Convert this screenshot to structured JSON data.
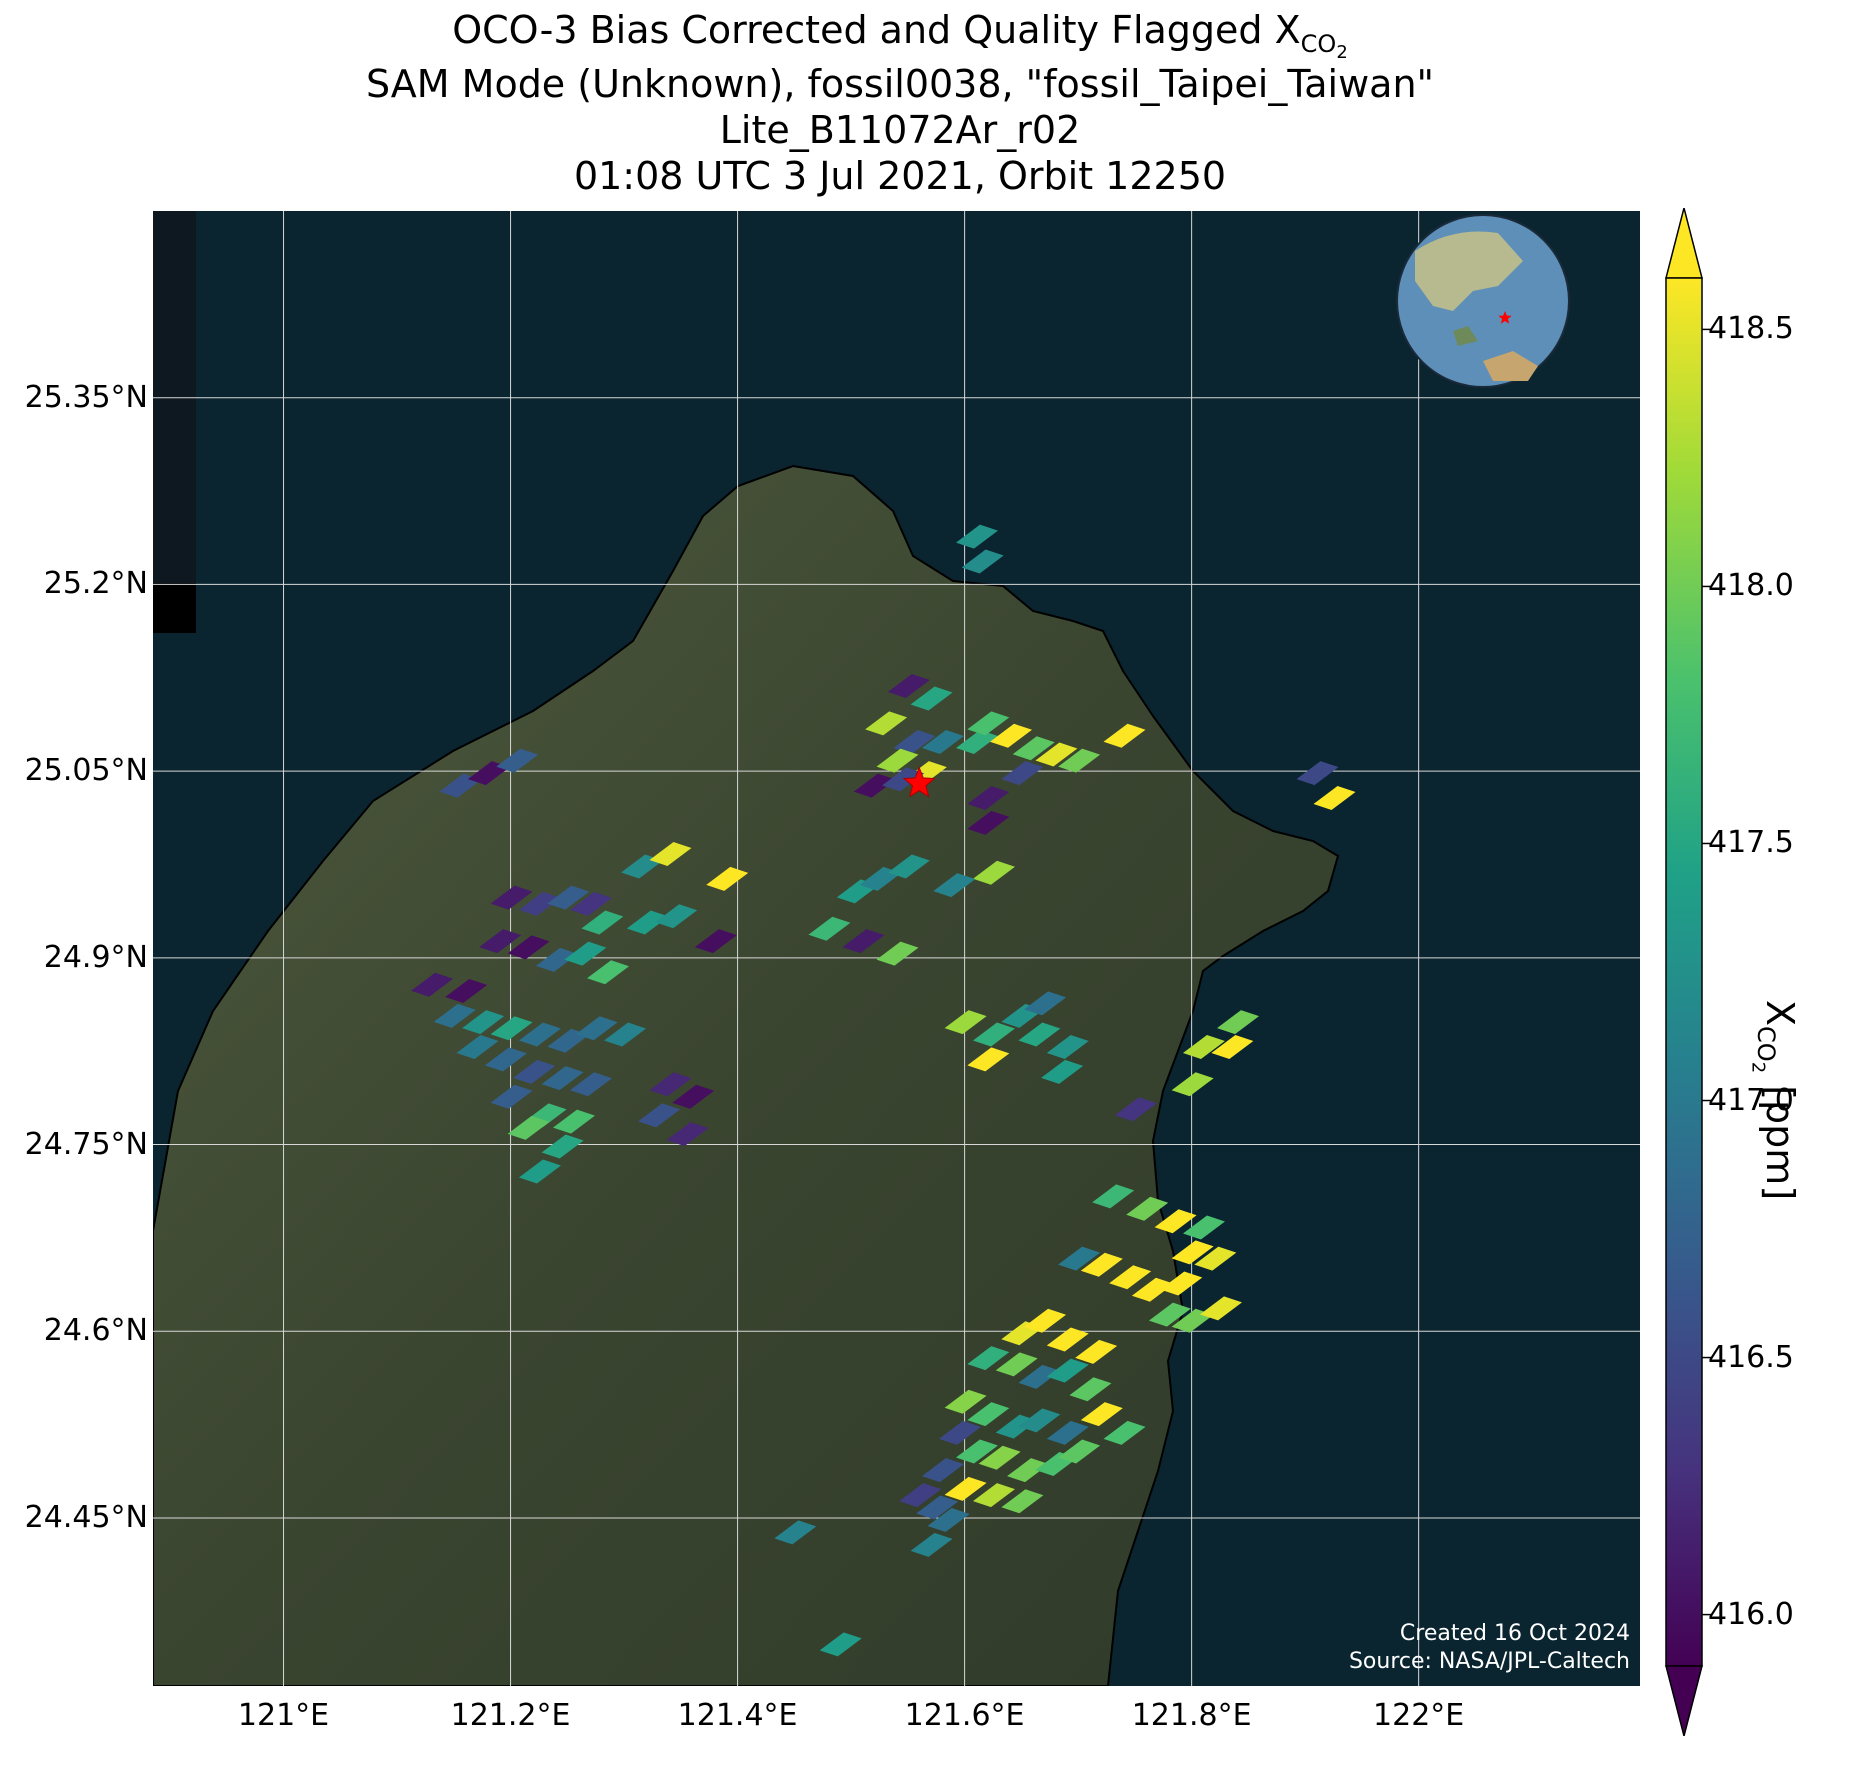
{
  "title": {
    "line1_prefix": "OCO-3 Bias Corrected and Quality Flagged X",
    "line1_sub": "CO",
    "line1_subsub": "2",
    "line2": "SAM Mode (Unknown), fossil0038, \"fossil_Taipei_Taiwan\"",
    "line3": "Lite_B11072Ar_r02",
    "line4": "01:08 UTC 3 Jul 2021, Orbit 12250"
  },
  "map": {
    "lon_range": [
      120.885,
      122.195
    ],
    "lat_range": [
      24.315,
      25.5
    ],
    "lat_ticks": [
      "25.35°N",
      "25.2°N",
      "25.05°N",
      "24.9°N",
      "24.75°N",
      "24.6°N",
      "24.45°N"
    ],
    "lat_tick_values": [
      25.35,
      25.2,
      25.05,
      24.9,
      24.75,
      24.6,
      24.45
    ],
    "lon_ticks": [
      "121°E",
      "121.2°E",
      "121.4°E",
      "121.6°E",
      "121.8°E",
      "122°E"
    ],
    "lon_tick_values": [
      121.0,
      121.2,
      121.4,
      121.6,
      121.8,
      122.0
    ],
    "target_marker": {
      "lon": 121.56,
      "lat": 25.04,
      "icon": "red-star-icon"
    },
    "ocean_color": "#0a2530",
    "land_color": "#3d4a33",
    "credits": {
      "line1": "Created 16 Oct 2024",
      "line2": "Source: NASA/JPL-Caltech"
    }
  },
  "colorbar": {
    "min": 415.9,
    "max": 418.6,
    "ticks": [
      "416.0",
      "416.5",
      "417.0",
      "417.5",
      "418.0",
      "418.5"
    ],
    "tick_values": [
      416.0,
      416.5,
      417.0,
      417.5,
      418.0,
      418.5
    ],
    "label_prefix": "X",
    "label_sub": "CO",
    "label_subsub": "2",
    "label_suffix": " [ppm]",
    "colormap": "viridis",
    "extend": "both"
  },
  "chart_data": {
    "type": "heatmap",
    "description_units": "lon (°E), lat (°N), XCO2 (ppm)",
    "points": [
      [
        121.61,
        25.24,
        417.3
      ],
      [
        121.615,
        25.22,
        417.2
      ],
      [
        121.55,
        25.12,
        416.1
      ],
      [
        121.57,
        25.11,
        417.5
      ],
      [
        121.53,
        25.09,
        418.3
      ],
      [
        121.555,
        25.075,
        416.6
      ],
      [
        121.58,
        25.075,
        417.0
      ],
      [
        121.54,
        25.06,
        418.2
      ],
      [
        121.565,
        25.05,
        418.5
      ],
      [
        121.61,
        25.075,
        417.6
      ],
      [
        121.62,
        25.09,
        417.8
      ],
      [
        121.64,
        25.08,
        418.6
      ],
      [
        121.66,
        25.07,
        417.9
      ],
      [
        121.68,
        25.065,
        418.5
      ],
      [
        121.7,
        25.06,
        418.0
      ],
      [
        121.74,
        25.08,
        418.6
      ],
      [
        121.65,
        25.05,
        416.5
      ],
      [
        121.62,
        25.03,
        416.1
      ],
      [
        121.62,
        25.01,
        416.0
      ],
      [
        121.625,
        24.97,
        418.2
      ],
      [
        121.52,
        25.04,
        416.0
      ],
      [
        121.545,
        25.045,
        416.5
      ],
      [
        121.91,
        25.05,
        416.5
      ],
      [
        121.925,
        25.03,
        418.6
      ],
      [
        121.155,
        25.04,
        416.6
      ],
      [
        121.18,
        25.05,
        416.0
      ],
      [
        121.205,
        25.06,
        416.7
      ],
      [
        121.315,
        24.975,
        417.2
      ],
      [
        121.34,
        24.985,
        418.5
      ],
      [
        121.39,
        24.965,
        418.6
      ],
      [
        121.32,
        24.93,
        417.4
      ],
      [
        121.345,
        24.935,
        417.3
      ],
      [
        121.38,
        24.915,
        416.0
      ],
      [
        121.2,
        24.95,
        416.1
      ],
      [
        121.225,
        24.945,
        416.4
      ],
      [
        121.25,
        24.95,
        416.7
      ],
      [
        121.27,
        24.945,
        416.3
      ],
      [
        121.28,
        24.93,
        417.6
      ],
      [
        121.19,
        24.915,
        416.1
      ],
      [
        121.215,
        24.91,
        416.0
      ],
      [
        121.24,
        24.9,
        416.8
      ],
      [
        121.265,
        24.905,
        417.4
      ],
      [
        121.285,
        24.89,
        417.8
      ],
      [
        121.13,
        24.88,
        416.1
      ],
      [
        121.16,
        24.875,
        416.0
      ],
      [
        121.15,
        24.855,
        416.9
      ],
      [
        121.175,
        24.85,
        417.3
      ],
      [
        121.2,
        24.845,
        417.5
      ],
      [
        121.225,
        24.84,
        416.9
      ],
      [
        121.25,
        24.835,
        416.8
      ],
      [
        121.275,
        24.845,
        416.9
      ],
      [
        121.3,
        24.84,
        417.1
      ],
      [
        121.17,
        24.83,
        417.0
      ],
      [
        121.195,
        24.82,
        416.8
      ],
      [
        121.22,
        24.81,
        416.6
      ],
      [
        121.245,
        24.805,
        416.8
      ],
      [
        121.27,
        24.8,
        416.7
      ],
      [
        121.2,
        24.79,
        416.7
      ],
      [
        121.23,
        24.775,
        417.7
      ],
      [
        121.255,
        24.77,
        417.8
      ],
      [
        121.215,
        24.765,
        417.9
      ],
      [
        121.245,
        24.75,
        417.5
      ],
      [
        121.225,
        24.73,
        417.4
      ],
      [
        121.34,
        24.8,
        416.2
      ],
      [
        121.36,
        24.79,
        416.0
      ],
      [
        121.33,
        24.775,
        416.6
      ],
      [
        121.355,
        24.76,
        416.2
      ],
      [
        121.505,
        24.955,
        417.4
      ],
      [
        121.525,
        24.965,
        417.1
      ],
      [
        121.55,
        24.975,
        417.3
      ],
      [
        121.59,
        24.96,
        417.1
      ],
      [
        121.48,
        24.925,
        417.7
      ],
      [
        121.51,
        24.915,
        416.1
      ],
      [
        121.54,
        24.905,
        418.0
      ],
      [
        121.6,
        24.85,
        418.2
      ],
      [
        121.625,
        24.84,
        417.6
      ],
      [
        121.62,
        24.82,
        418.6
      ],
      [
        121.65,
        24.855,
        417.3
      ],
      [
        121.67,
        24.865,
        416.9
      ],
      [
        121.665,
        24.84,
        417.5
      ],
      [
        121.69,
        24.83,
        417.3
      ],
      [
        121.685,
        24.81,
        417.4
      ],
      [
        121.75,
        24.78,
        416.3
      ],
      [
        121.81,
        24.83,
        418.3
      ],
      [
        121.8,
        24.8,
        418.2
      ],
      [
        121.84,
        24.85,
        418.0
      ],
      [
        121.835,
        24.83,
        418.6
      ],
      [
        121.73,
        24.71,
        417.7
      ],
      [
        121.76,
        24.7,
        418.0
      ],
      [
        121.785,
        24.69,
        418.6
      ],
      [
        121.81,
        24.685,
        417.8
      ],
      [
        121.8,
        24.665,
        418.6
      ],
      [
        121.82,
        24.66,
        418.5
      ],
      [
        121.7,
        24.66,
        417.0
      ],
      [
        121.72,
        24.655,
        418.6
      ],
      [
        121.745,
        24.645,
        418.6
      ],
      [
        121.765,
        24.635,
        418.6
      ],
      [
        121.79,
        24.64,
        418.6
      ],
      [
        121.78,
        24.615,
        417.9
      ],
      [
        121.8,
        24.61,
        418.0
      ],
      [
        121.825,
        24.62,
        418.5
      ],
      [
        121.65,
        24.6,
        418.5
      ],
      [
        121.67,
        24.61,
        418.6
      ],
      [
        121.69,
        24.595,
        418.6
      ],
      [
        121.715,
        24.585,
        418.6
      ],
      [
        121.62,
        24.58,
        417.6
      ],
      [
        121.645,
        24.575,
        418.0
      ],
      [
        121.665,
        24.565,
        416.9
      ],
      [
        121.69,
        24.57,
        417.4
      ],
      [
        121.71,
        24.555,
        417.9
      ],
      [
        121.6,
        24.545,
        418.1
      ],
      [
        121.62,
        24.535,
        417.8
      ],
      [
        121.645,
        24.525,
        417.3
      ],
      [
        121.665,
        24.53,
        417.2
      ],
      [
        121.69,
        24.52,
        416.9
      ],
      [
        121.72,
        24.535,
        418.6
      ],
      [
        121.74,
        24.52,
        417.8
      ],
      [
        121.595,
        24.52,
        416.5
      ],
      [
        121.61,
        24.505,
        417.8
      ],
      [
        121.63,
        24.5,
        418.1
      ],
      [
        121.655,
        24.49,
        418.0
      ],
      [
        121.68,
        24.495,
        417.8
      ],
      [
        121.7,
        24.505,
        417.9
      ],
      [
        121.58,
        24.49,
        416.6
      ],
      [
        121.6,
        24.475,
        418.6
      ],
      [
        121.625,
        24.47,
        418.3
      ],
      [
        121.65,
        24.465,
        418.0
      ],
      [
        121.575,
        24.46,
        416.7
      ],
      [
        121.56,
        24.47,
        416.4
      ],
      [
        121.585,
        24.45,
        416.9
      ],
      [
        121.57,
        24.43,
        417.1
      ],
      [
        121.45,
        24.44,
        417.1
      ],
      [
        121.49,
        24.35,
        417.4
      ]
    ]
  }
}
